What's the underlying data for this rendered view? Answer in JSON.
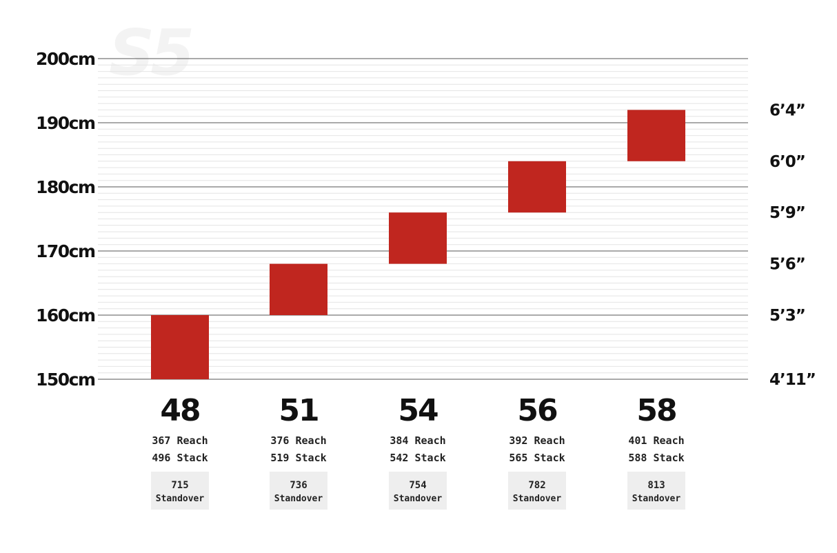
{
  "watermark": "S5",
  "chart_data": {
    "type": "bar",
    "orientation": "floating-range",
    "categories": [
      "48",
      "51",
      "54",
      "56",
      "58"
    ],
    "ranges": [
      {
        "size": "48",
        "min": 150,
        "max": 160
      },
      {
        "size": "51",
        "min": 160,
        "max": 168
      },
      {
        "size": "54",
        "min": 168,
        "max": 176
      },
      {
        "size": "56",
        "min": 176,
        "max": 184
      },
      {
        "size": "58",
        "min": 184,
        "max": 192
      }
    ],
    "ylim": [
      150,
      200
    ],
    "y_ticks_left": [
      {
        "value": 150,
        "label": "150cm"
      },
      {
        "value": 160,
        "label": "160cm"
      },
      {
        "value": 170,
        "label": "170cm"
      },
      {
        "value": 180,
        "label": "180cm"
      },
      {
        "value": 190,
        "label": "190cm"
      },
      {
        "value": 200,
        "label": "200cm"
      }
    ],
    "y_ticks_right": [
      {
        "value": 150,
        "label": "4’11”"
      },
      {
        "value": 160,
        "label": "5’3”"
      },
      {
        "value": 168,
        "label": "5’6”"
      },
      {
        "value": 176,
        "label": "5’9”"
      },
      {
        "value": 184,
        "label": "6’0”"
      },
      {
        "value": 192,
        "label": "6’4”"
      }
    ],
    "geometry": [
      {
        "reach": "367 Reach",
        "stack": "496 Stack",
        "standover": "715",
        "standover_label": "Standover"
      },
      {
        "reach": "376 Reach",
        "stack": "519 Stack",
        "standover": "736",
        "standover_label": "Standover"
      },
      {
        "reach": "384 Reach",
        "stack": "542 Stack",
        "standover": "754",
        "standover_label": "Standover"
      },
      {
        "reach": "392 Reach",
        "stack": "565 Stack",
        "standover": "782",
        "standover_label": "Standover"
      },
      {
        "reach": "401 Reach",
        "stack": "588 Stack",
        "standover": "813",
        "standover_label": "Standover"
      }
    ],
    "grid": true,
    "colors": {
      "bar": "#c0261f",
      "major_grid": "#555555",
      "minor_grid": "#e4e4e4",
      "standover_box": "#eeeeee",
      "text": "#111111"
    }
  }
}
